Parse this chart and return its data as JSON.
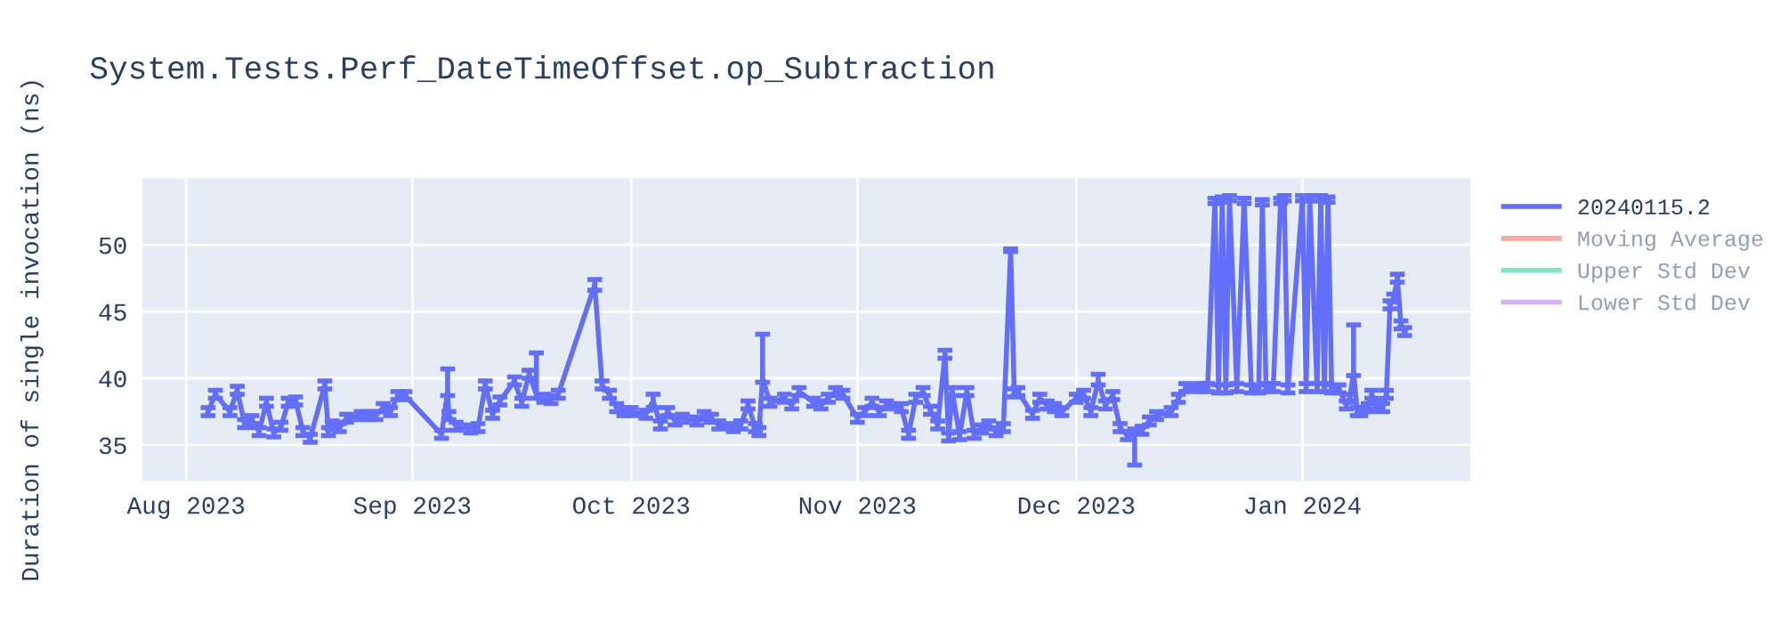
{
  "chart_data": {
    "type": "line",
    "title": "System.Tests.Perf_DateTimeOffset.op_Subtraction",
    "ylabel": "Duration of single invocation (ns)",
    "x": [
      "2023-08-04",
      "2023-08-05",
      "2023-08-07",
      "2023-08-08",
      "2023-08-09",
      "2023-08-10",
      "2023-08-11",
      "2023-08-12",
      "2023-08-13",
      "2023-08-14",
      "2023-08-15",
      "2023-08-16",
      "2023-08-17",
      "2023-08-18",
      "2023-08-20",
      "2023-08-20T12:00",
      "2023-08-21",
      "2023-08-22",
      "2023-08-23",
      "2023-08-25",
      "2023-08-26",
      "2023-08-27",
      "2023-08-28",
      "2023-08-29",
      "2023-08-30",
      "2023-08-31",
      "2023-09-05",
      "2023-09-05T20:00",
      "2023-09-06",
      "2023-09-07",
      "2023-09-09",
      "2023-09-10",
      "2023-09-11",
      "2023-09-12",
      "2023-09-13",
      "2023-09-15",
      "2023-09-16",
      "2023-09-17",
      "2023-09-18",
      "2023-09-19",
      "2023-09-20",
      "2023-09-21",
      "2023-09-26",
      "2023-09-27",
      "2023-09-28",
      "2023-09-29",
      "2023-09-30",
      "2023-10-01",
      "2023-10-03",
      "2023-10-04",
      "2023-10-05",
      "2023-10-06",
      "2023-10-07",
      "2023-10-08",
      "2023-10-10",
      "2023-10-11",
      "2023-10-12",
      "2023-10-13",
      "2023-10-15",
      "2023-10-16",
      "2023-10-17",
      "2023-10-18",
      "2023-10-18T12:00",
      "2023-10-19",
      "2023-10-20",
      "2023-10-22",
      "2023-10-23",
      "2023-10-24",
      "2023-10-26",
      "2023-10-27",
      "2023-10-28",
      "2023-10-29",
      "2023-10-30",
      "2023-11-01",
      "2023-11-02",
      "2023-11-03",
      "2023-11-04",
      "2023-11-05",
      "2023-11-07",
      "2023-11-08",
      "2023-11-09",
      "2023-11-10",
      "2023-11-11",
      "2023-11-12",
      "2023-11-13",
      "2023-11-13T12:00",
      "2023-11-14",
      "2023-11-15",
      "2023-11-16",
      "2023-11-17",
      "2023-11-18",
      "2023-11-19",
      "2023-11-20",
      "2023-11-21",
      "2023-11-22",
      "2023-11-22T12:00",
      "2023-11-23",
      "2023-11-25",
      "2023-11-26",
      "2023-11-27",
      "2023-11-28",
      "2023-11-29",
      "2023-12-01",
      "2023-12-02",
      "2023-12-03",
      "2023-12-04",
      "2023-12-05",
      "2023-12-06",
      "2023-12-07",
      "2023-12-08",
      "2023-12-09",
      "2023-12-10",
      "2023-12-11",
      "2023-12-12",
      "2023-12-14",
      "2023-12-15",
      "2023-12-16",
      "2023-12-18",
      "2023-12-19",
      "2023-12-20",
      "2023-12-20T12:00",
      "2023-12-21",
      "2023-12-21T12:00",
      "2023-12-22",
      "2023-12-23",
      "2023-12-24",
      "2023-12-25",
      "2023-12-26",
      "2023-12-26T12:00",
      "2023-12-27",
      "2023-12-28",
      "2023-12-29",
      "2023-12-29T12:00",
      "2023-12-30",
      "2024-01-01",
      "2024-01-01T12:00",
      "2024-01-02",
      "2024-01-03",
      "2024-01-03T12:00",
      "2024-01-04",
      "2024-01-04T12:00",
      "2024-01-05",
      "2024-01-06",
      "2024-01-07",
      "2024-01-07T12:00",
      "2024-01-08",
      "2024-01-08T12:00",
      "2024-01-09",
      "2024-01-10",
      "2024-01-10T12:00",
      "2024-01-11",
      "2024-01-12",
      "2024-01-12T12:00",
      "2024-01-13",
      "2024-01-13T12:00",
      "2024-01-14",
      "2024-01-14T12:00",
      "2024-01-15"
    ],
    "series": [
      {
        "name": "20240115.2",
        "color": "#636efa",
        "values": [
          37.5,
          38.8,
          37.5,
          39.1,
          36.6,
          36.9,
          36.0,
          38.2,
          35.9,
          36.4,
          38.2,
          38.3,
          36.0,
          35.5,
          39.5,
          36.0,
          36.5,
          36.3,
          37.0,
          37.2,
          37.2,
          37.2,
          37.8,
          37.5,
          38.7,
          38.7,
          35.8,
          39.0,
          37.2,
          36.4,
          36.2,
          36.3,
          39.5,
          37.3,
          38.3,
          39.8,
          38.2,
          40.3,
          38.8,
          38.5,
          38.4,
          38.8,
          47.0,
          39.5,
          38.8,
          37.8,
          37.5,
          37.5,
          37.3,
          38.3,
          36.5,
          37.5,
          36.8,
          37.0,
          36.8,
          37.2,
          37.0,
          36.5,
          36.3,
          36.5,
          38.0,
          36.3,
          36.0,
          40.0,
          38.2,
          38.5,
          38.0,
          39.0,
          38.2,
          38.0,
          38.5,
          39.0,
          38.8,
          37.0,
          37.5,
          38.2,
          37.5,
          38.0,
          37.8,
          35.8,
          38.5,
          39.0,
          37.6,
          36.5,
          41.8,
          35.6,
          39.0,
          35.7,
          39.0,
          35.8,
          36.2,
          36.5,
          36.0,
          36.3,
          49.6,
          38.9,
          39.0,
          37.3,
          38.5,
          38.0,
          37.8,
          37.5,
          38.5,
          38.8,
          37.5,
          39.8,
          38.0,
          38.7,
          36.3,
          35.7,
          35.9,
          36.1,
          36.8,
          37.2,
          37.5,
          38.5,
          39.3,
          39.3,
          39.3,
          53.3,
          39.2,
          53.4,
          39.2,
          53.5,
          39.3,
          53.3,
          39.2,
          39.2,
          53.2,
          39.3,
          39.3,
          53.3,
          53.5,
          39.2,
          53.5,
          39.3,
          53.5,
          39.3,
          53.5,
          39.3,
          53.4,
          39.2,
          39.2,
          38.0,
          38.5,
          40.5,
          37.5,
          37.5,
          37.8,
          38.8,
          38.0,
          37.8,
          38.8,
          45.5,
          46.0,
          47.5,
          44.0,
          43.5
        ],
        "errors": [
          0.3,
          0.3,
          0.3,
          0.3,
          0.3,
          0.3,
          0.3,
          0.3,
          0.3,
          0.3,
          0.3,
          0.3,
          0.3,
          0.3,
          0.3,
          0.3,
          0.3,
          0.3,
          0.3,
          0.3,
          0.3,
          0.3,
          0.3,
          0.3,
          0.3,
          0.3,
          0.3,
          [
            38.7,
            40.7
          ],
          0.3,
          0.3,
          0.3,
          0.3,
          0.3,
          0.3,
          0.3,
          0.3,
          0.3,
          0.3,
          [
            38.5,
            41.9
          ],
          0.3,
          0.3,
          0.3,
          0.4,
          0.3,
          0.3,
          0.3,
          0.3,
          0.3,
          0.3,
          0.5,
          0.3,
          0.3,
          0.3,
          0.3,
          0.3,
          0.3,
          0.3,
          0.3,
          0.3,
          0.3,
          0.3,
          0.3,
          0.3,
          [
            39.7,
            43.3
          ],
          0.3,
          0.3,
          0.3,
          0.3,
          0.3,
          0.3,
          0.3,
          0.3,
          0.3,
          0.3,
          0.3,
          0.3,
          0.3,
          0.3,
          0.3,
          0.3,
          0.3,
          0.3,
          0.3,
          0.3,
          0.3,
          0.3,
          0.3,
          0.3,
          0.3,
          0.3,
          0.3,
          0.3,
          0.3,
          0.3,
          0.1,
          0.3,
          0.3,
          0.3,
          0.3,
          0.3,
          0.3,
          0.3,
          0.3,
          0.3,
          0.3,
          [
            39.5,
            40.3
          ],
          0.3,
          0.3,
          0.3,
          0.3,
          [
            33.5,
            36.2
          ],
          0.3,
          0.3,
          0.3,
          0.3,
          0.3,
          0.3,
          0.3,
          0.3,
          0.2,
          0.3,
          0.2,
          0.3,
          0.2,
          0.3,
          0.2,
          0.3,
          0.3,
          0.2,
          0.3,
          0.3,
          0.2,
          0.2,
          0.3,
          0.2,
          0.3,
          0.2,
          0.3,
          0.2,
          0.3,
          0.2,
          0.3,
          0.3,
          0.3,
          0.3,
          [
            40.2,
            44.0
          ],
          0.3,
          0.3,
          0.3,
          0.3,
          0.3,
          0.3,
          0.3,
          0.3,
          0.3,
          0.3,
          0.3,
          0.3
        ]
      },
      {
        "name": "Moving Average",
        "color": "#ef553b",
        "values": [
          null,
          null,
          null,
          null,
          null,
          null,
          null,
          null,
          null,
          null,
          null,
          null,
          null,
          null,
          null,
          null,
          null,
          null,
          null,
          null,
          null,
          null,
          null,
          null,
          null,
          null,
          null,
          null,
          null,
          null,
          null,
          null,
          null,
          null,
          null,
          null,
          null,
          null,
          null,
          null,
          null,
          null,
          null,
          null,
          null,
          null,
          null,
          null,
          null,
          null,
          null,
          null,
          null,
          null,
          null,
          null,
          null,
          null,
          null,
          null,
          null,
          null,
          null,
          null,
          null,
          null,
          null,
          null,
          null,
          null,
          null,
          null,
          null,
          null,
          null,
          null,
          null,
          null,
          null,
          null,
          null,
          null,
          null,
          null,
          null,
          null,
          null,
          null,
          null,
          null,
          null,
          null,
          null,
          null,
          null,
          null,
          null,
          null,
          null,
          null,
          null,
          null,
          null,
          null,
          null,
          null,
          null,
          null,
          null,
          null,
          null,
          null,
          null,
          null,
          null,
          null,
          null,
          null,
          null,
          null,
          null,
          null,
          null,
          null,
          null,
          null,
          null,
          null,
          null,
          null,
          null,
          null,
          null,
          null,
          null,
          null,
          null,
          null,
          null,
          null,
          null,
          null,
          null,
          null,
          null,
          null,
          null,
          null,
          null,
          null,
          null,
          null,
          null,
          null,
          null,
          null,
          null,
          null
        ]
      },
      {
        "name": "Upper Std Dev",
        "color": "#00cc96",
        "values": [
          null,
          null,
          null,
          null,
          null,
          null,
          null,
          null,
          null,
          null,
          null,
          null,
          null,
          null,
          null,
          null,
          null,
          null,
          null,
          null,
          null,
          null,
          null,
          null,
          null,
          null,
          null,
          null,
          null,
          null,
          null,
          null,
          null,
          null,
          null,
          null,
          null,
          null,
          null,
          null,
          null,
          null,
          null,
          null,
          null,
          null,
          null,
          null,
          null,
          null,
          null,
          null,
          null,
          null,
          null,
          null,
          null,
          null,
          null,
          null,
          null,
          null,
          null,
          null,
          null,
          null,
          null,
          null,
          null,
          null,
          null,
          null,
          null,
          null,
          null,
          null,
          null,
          null,
          null,
          null,
          null,
          null,
          null,
          null,
          null,
          null,
          null,
          null,
          null,
          null,
          null,
          null,
          null,
          null,
          null,
          null,
          null,
          null,
          null,
          null,
          null,
          null,
          null,
          null,
          null,
          null,
          null,
          null,
          null,
          null,
          null,
          null,
          null,
          null,
          null,
          null,
          null,
          null,
          null,
          null,
          null,
          null,
          null,
          null,
          null,
          null,
          null,
          null,
          null,
          null,
          null,
          null,
          null,
          null,
          null,
          null,
          null,
          null,
          null,
          null,
          null,
          null,
          null,
          null,
          null,
          null,
          null,
          null,
          null,
          null,
          null,
          null,
          null,
          null,
          null,
          null,
          null,
          null
        ]
      },
      {
        "name": "Lower Std Dev",
        "color": "#ab63fa",
        "values": [
          null,
          null,
          null,
          null,
          null,
          null,
          null,
          null,
          null,
          null,
          null,
          null,
          null,
          null,
          null,
          null,
          null,
          null,
          null,
          null,
          null,
          null,
          null,
          null,
          null,
          null,
          null,
          null,
          null,
          null,
          null,
          null,
          null,
          null,
          null,
          null,
          null,
          null,
          null,
          null,
          null,
          null,
          null,
          null,
          null,
          null,
          null,
          null,
          null,
          null,
          null,
          null,
          null,
          null,
          null,
          null,
          null,
          null,
          null,
          null,
          null,
          null,
          null,
          null,
          null,
          null,
          null,
          null,
          null,
          null,
          null,
          null,
          null,
          null,
          null,
          null,
          null,
          null,
          null,
          null,
          null,
          null,
          null,
          null,
          null,
          null,
          null,
          null,
          null,
          null,
          null,
          null,
          null,
          null,
          null,
          null,
          null,
          null,
          null,
          null,
          null,
          null,
          null,
          null,
          null,
          null,
          null,
          null,
          null,
          null,
          null,
          null,
          null,
          null,
          null,
          null,
          null,
          null,
          null,
          null,
          null,
          null,
          null,
          null,
          null,
          null,
          null,
          null,
          null,
          null,
          null,
          null,
          null,
          null,
          null,
          null,
          null,
          null,
          null,
          null,
          null,
          null,
          null,
          null,
          null,
          null,
          null,
          null,
          null,
          null,
          null,
          null,
          null,
          null,
          null,
          null,
          null,
          null
        ]
      }
    ],
    "xlim": [
      "2023-07-26",
      "2024-01-24"
    ],
    "xticks": [
      {
        "value": "2023-08-01",
        "label": "Aug 2023"
      },
      {
        "value": "2023-09-01",
        "label": "Sep 2023"
      },
      {
        "value": "2023-10-01",
        "label": "Oct 2023"
      },
      {
        "value": "2023-11-01",
        "label": "Nov 2023"
      },
      {
        "value": "2023-12-01",
        "label": "Dec 2023"
      },
      {
        "value": "2024-01-01",
        "label": "Jan 2024"
      }
    ],
    "ylim": [
      32.3,
      55.0
    ],
    "yticks": [
      35,
      40,
      45,
      50
    ],
    "grid": true,
    "legend": "right",
    "marker": "none",
    "line_style": "solid"
  }
}
